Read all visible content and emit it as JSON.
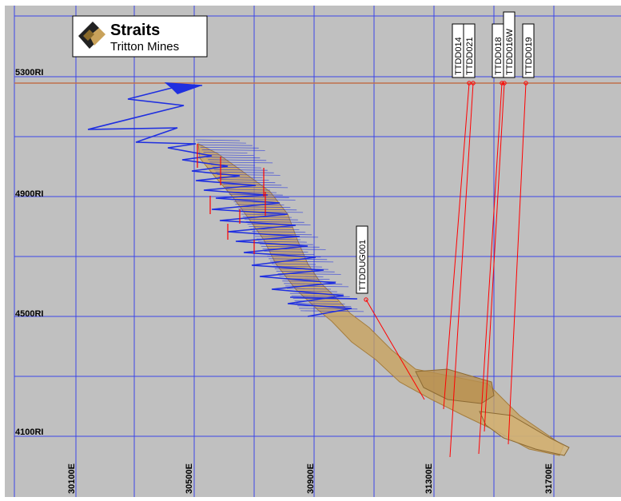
{
  "logo": {
    "company": "Straits",
    "subtitle": "Tritton Mines"
  },
  "y_labels": [
    "5300RI",
    "4900RI",
    "4500RI",
    "4100RI"
  ],
  "x_labels": [
    "30100E",
    "30500E",
    "30900E",
    "31300E",
    "31700E"
  ],
  "drillholes": [
    {
      "id": "TTDD014"
    },
    {
      "id": "TTDD021"
    },
    {
      "id": "TTDD018"
    },
    {
      "id": "TTDD016W"
    },
    {
      "id": "TTDD019"
    },
    {
      "id": "TTDDUG001"
    }
  ],
  "colors": {
    "background": "#c0c0c0",
    "grid": "#3b46e8",
    "surface": "#c0714a",
    "drillhole": "#ff0000",
    "workings": "#1f2fe0",
    "orebody": "#c9a25a"
  }
}
